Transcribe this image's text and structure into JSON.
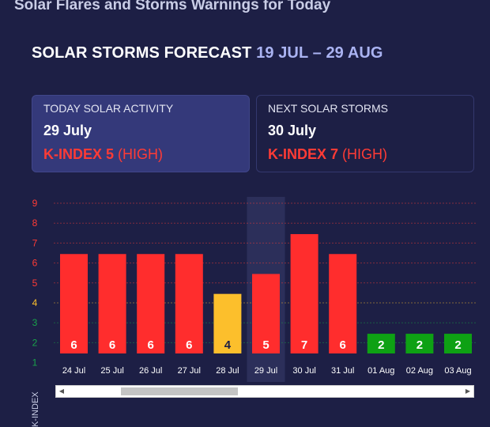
{
  "page": {
    "heading": "Solar Flares and Storms Warnings for Today"
  },
  "forecast": {
    "title": "SOLAR STORMS FORECAST",
    "range": "19 JUL – 29 AUG"
  },
  "today_card": {
    "label": "TODAY SOLAR ACTIVITY",
    "date": "29 July",
    "kindex": "K-INDEX 5",
    "level": "(HIGH)"
  },
  "next_card": {
    "label": "NEXT SOLAR STORMS",
    "date": "30 July",
    "kindex": "K-INDEX 7",
    "level": "(HIGH)"
  },
  "colors": {
    "background": "#1d1f45",
    "high": "#ff2d2d",
    "moderate": "#fcbf2c",
    "low": "#0ea114",
    "highlight": "#2c2f5a"
  },
  "chart_data": {
    "type": "bar",
    "title": "",
    "xlabel": "",
    "ylabel": "K-INDEX",
    "ylim": [
      1,
      9
    ],
    "y_ticks": [
      1,
      2,
      3,
      4,
      5,
      6,
      7,
      8,
      9
    ],
    "y_tick_colors": [
      "#19a34a",
      "#19a34a",
      "#19a34a",
      "#fcbf2c",
      "#ff3b35",
      "#ff3b35",
      "#ff3b35",
      "#ff3b35",
      "#ff3b35"
    ],
    "categories": [
      "24 Jul",
      "25 Jul",
      "26 Jul",
      "27 Jul",
      "28 Jul",
      "29 Jul",
      "30 Jul",
      "31 Jul",
      "01 Aug",
      "02 Aug",
      "03 Aug"
    ],
    "values": [
      6,
      6,
      6,
      6,
      4,
      5,
      7,
      6,
      2,
      2,
      2
    ],
    "bar_colors": [
      "#ff2d2d",
      "#ff2d2d",
      "#ff2d2d",
      "#ff2d2d",
      "#fcbf2c",
      "#ff2d2d",
      "#ff2d2d",
      "#ff2d2d",
      "#0ea114",
      "#0ea114",
      "#0ea114"
    ],
    "highlighted_category": "29 Jul",
    "grid": true
  }
}
